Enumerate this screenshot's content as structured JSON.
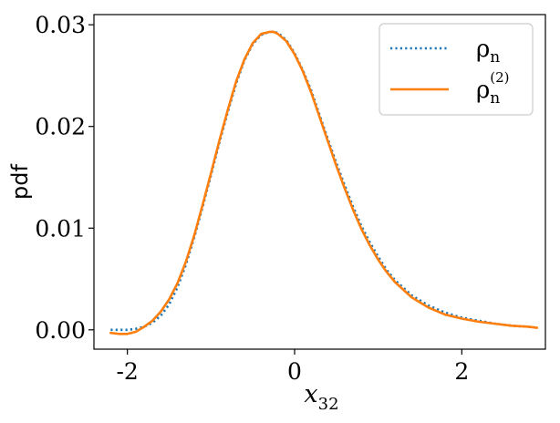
{
  "chart_data": {
    "type": "line",
    "title": "",
    "ylabel": "pdf",
    "xlabel": {
      "base": "x",
      "sub": "32"
    },
    "xlim": [
      -2.4,
      3.0
    ],
    "ylim": [
      -0.0019,
      0.031
    ],
    "xticks": [
      {
        "value": -2,
        "label": "-2"
      },
      {
        "value": 0,
        "label": "0"
      },
      {
        "value": 2,
        "label": "2"
      }
    ],
    "yticks": [
      {
        "value": 0.0,
        "label": "0.00"
      },
      {
        "value": 0.01,
        "label": "0.01"
      },
      {
        "value": 0.02,
        "label": "0.02"
      },
      {
        "value": 0.03,
        "label": "0.03"
      }
    ],
    "grid": false,
    "legend_position": "top-right",
    "series": [
      {
        "name": "ρn",
        "legend": {
          "base": "ρ",
          "sub": "n",
          "sup": ""
        },
        "color": "#1f77b4",
        "style": "dotted",
        "x": [
          -2.2,
          -2.1,
          -2.0,
          -1.9,
          -1.8,
          -1.7,
          -1.6,
          -1.5,
          -1.4,
          -1.3,
          -1.2,
          -1.1,
          -1.0,
          -0.9,
          -0.8,
          -0.7,
          -0.6,
          -0.5,
          -0.4,
          -0.3,
          -0.25,
          -0.2,
          -0.1,
          0.0,
          0.1,
          0.2,
          0.3,
          0.4,
          0.5,
          0.6,
          0.7,
          0.8,
          0.9,
          1.0,
          1.1,
          1.2,
          1.4,
          1.6,
          1.8,
          2.0,
          2.2,
          2.4,
          2.6,
          2.8,
          2.9
        ],
        "y": [
          0.0,
          0.0,
          0.0,
          0.0001,
          0.0003,
          0.0007,
          0.0014,
          0.0025,
          0.0042,
          0.0064,
          0.0091,
          0.0121,
          0.0152,
          0.0184,
          0.0214,
          0.0242,
          0.0265,
          0.0281,
          0.029,
          0.0293,
          0.0293,
          0.0292,
          0.0285,
          0.0272,
          0.0255,
          0.0235,
          0.0211,
          0.0187,
          0.0164,
          0.0142,
          0.0121,
          0.0102,
          0.0086,
          0.0072,
          0.0059,
          0.0049,
          0.0034,
          0.0024,
          0.0017,
          0.0012,
          0.0009,
          0.0006,
          0.0004,
          0.0003,
          0.0002
        ]
      },
      {
        "name": "ρn(2)",
        "legend": {
          "base": "ρ",
          "sub": "n",
          "sup": "(2)"
        },
        "color": "#ff7f0e",
        "style": "solid",
        "x": [
          -2.2,
          -2.1,
          -2.0,
          -1.9,
          -1.8,
          -1.7,
          -1.6,
          -1.5,
          -1.4,
          -1.3,
          -1.2,
          -1.1,
          -1.0,
          -0.9,
          -0.8,
          -0.7,
          -0.6,
          -0.5,
          -0.4,
          -0.3,
          -0.25,
          -0.2,
          -0.1,
          0.0,
          0.1,
          0.2,
          0.3,
          0.4,
          0.5,
          0.6,
          0.7,
          0.8,
          0.9,
          1.0,
          1.1,
          1.2,
          1.4,
          1.6,
          1.8,
          2.0,
          2.2,
          2.4,
          2.6,
          2.8,
          2.9
        ],
        "y": [
          -0.0003,
          -0.0004,
          -0.0004,
          -0.0002,
          0.0003,
          0.0009,
          0.0018,
          0.003,
          0.0046,
          0.0067,
          0.0093,
          0.0123,
          0.0154,
          0.0186,
          0.0216,
          0.0244,
          0.0266,
          0.0282,
          0.0291,
          0.0293,
          0.0293,
          0.0291,
          0.0284,
          0.0271,
          0.0254,
          0.0233,
          0.0209,
          0.0185,
          0.0161,
          0.0139,
          0.0118,
          0.0099,
          0.0083,
          0.0069,
          0.0057,
          0.0047,
          0.0032,
          0.0022,
          0.0015,
          0.0011,
          0.0008,
          0.0006,
          0.0004,
          0.0003,
          0.0002
        ]
      }
    ]
  }
}
